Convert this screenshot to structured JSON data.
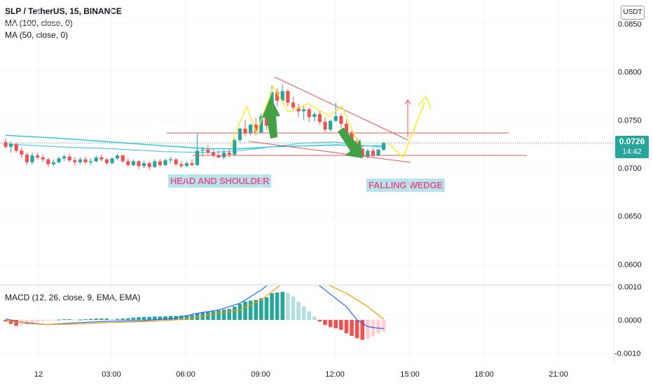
{
  "header": {
    "symbol_line": "SLP / TetherUS, 15, BINANCE",
    "ma100": "MA (100, close, 0)",
    "ma50": "MA (50, close, 0)",
    "currency": "USDT"
  },
  "macd": {
    "label": "MACD (12, 26, close, 9, EMA, EMA)"
  },
  "last_price": {
    "value": "0.0726",
    "countdown": "14:42"
  },
  "annotations": {
    "head_shoulder": "HEAD AND SHOULDER",
    "falling_wedge": "FALLING WEDGE"
  },
  "colors": {
    "up": "#26a69a",
    "down": "#ef5350",
    "ma100": "#26c6da",
    "ma50": "#4fc3f7",
    "macd": "#2962ff",
    "signal": "#ff9800",
    "pattern": "#ffeb3b",
    "wedge": "#ef5350"
  },
  "chart_data": {
    "type": "candlestick",
    "price_axis": {
      "ticks": [
        "0.0850",
        "0.0800",
        "0.0750",
        "0.0700",
        "0.0650",
        "0.0600"
      ],
      "range": [
        0.0585,
        0.0855
      ]
    },
    "macd_axis": {
      "ticks": [
        "0.0010",
        "0.0000",
        "-0.0010"
      ],
      "range": [
        -0.0012,
        0.0011
      ]
    },
    "time_axis": {
      "ticks": [
        "12",
        "03:00",
        "06:00",
        "09:00",
        "12:00",
        "15:00",
        "18:00",
        "21:00"
      ]
    },
    "candles": [
      [
        0.0727,
        0.0731,
        0.072,
        0.0722
      ],
      [
        0.0722,
        0.0728,
        0.0716,
        0.0725
      ],
      [
        0.0725,
        0.0726,
        0.0716,
        0.0718
      ],
      [
        0.0718,
        0.0721,
        0.071,
        0.0714
      ],
      [
        0.0714,
        0.0716,
        0.0703,
        0.0706
      ],
      [
        0.0706,
        0.0716,
        0.0704,
        0.0713
      ],
      [
        0.0713,
        0.0716,
        0.0709,
        0.0711
      ],
      [
        0.0711,
        0.0714,
        0.0706,
        0.0709
      ],
      [
        0.0709,
        0.0711,
        0.0701,
        0.0704
      ],
      [
        0.0704,
        0.0709,
        0.0702,
        0.0706
      ],
      [
        0.0706,
        0.0712,
        0.0705,
        0.071
      ],
      [
        0.071,
        0.0714,
        0.0707,
        0.0712
      ],
      [
        0.0712,
        0.0715,
        0.0706,
        0.0708
      ],
      [
        0.0708,
        0.0711,
        0.0702,
        0.0706
      ],
      [
        0.0706,
        0.0711,
        0.0704,
        0.0709
      ],
      [
        0.0709,
        0.0712,
        0.0704,
        0.0706
      ],
      [
        0.0706,
        0.071,
        0.0703,
        0.0707
      ],
      [
        0.0707,
        0.0713,
        0.0706,
        0.0711
      ],
      [
        0.0711,
        0.0714,
        0.0707,
        0.0709
      ],
      [
        0.0709,
        0.071,
        0.0703,
        0.0705
      ],
      [
        0.0705,
        0.0711,
        0.0704,
        0.071
      ],
      [
        0.071,
        0.0715,
        0.0708,
        0.0713
      ],
      [
        0.0713,
        0.0714,
        0.0705,
        0.0707
      ],
      [
        0.0707,
        0.071,
        0.0701,
        0.0703
      ],
      [
        0.0703,
        0.0709,
        0.0702,
        0.0707
      ],
      [
        0.0707,
        0.0708,
        0.0699,
        0.0702
      ],
      [
        0.0702,
        0.0708,
        0.07,
        0.0705
      ],
      [
        0.0705,
        0.0707,
        0.0698,
        0.0701
      ],
      [
        0.0701,
        0.0709,
        0.07,
        0.0707
      ],
      [
        0.0707,
        0.0709,
        0.0701,
        0.0703
      ],
      [
        0.0703,
        0.071,
        0.0702,
        0.0708
      ],
      [
        0.0708,
        0.0712,
        0.0705,
        0.0709
      ],
      [
        0.0709,
        0.071,
        0.0702,
        0.0704
      ],
      [
        0.0704,
        0.0707,
        0.07,
        0.0702
      ],
      [
        0.0702,
        0.0707,
        0.0701,
        0.0705
      ],
      [
        0.0705,
        0.0709,
        0.0702,
        0.0703
      ],
      [
        0.0703,
        0.0736,
        0.0702,
        0.0718
      ],
      [
        0.0718,
        0.0722,
        0.0712,
        0.0719
      ],
      [
        0.0719,
        0.0724,
        0.0714,
        0.0716
      ],
      [
        0.0716,
        0.072,
        0.0711,
        0.0713
      ],
      [
        0.0713,
        0.0718,
        0.071,
        0.0711
      ],
      [
        0.0711,
        0.0719,
        0.0709,
        0.0716
      ],
      [
        0.0716,
        0.072,
        0.0711,
        0.0714
      ],
      [
        0.0714,
        0.0731,
        0.0712,
        0.0729
      ],
      [
        0.0729,
        0.0742,
        0.0727,
        0.0741
      ],
      [
        0.0741,
        0.075,
        0.0733,
        0.0736
      ],
      [
        0.0736,
        0.0746,
        0.0734,
        0.0745
      ],
      [
        0.0745,
        0.0752,
        0.0734,
        0.0737
      ],
      [
        0.0737,
        0.0757,
        0.0736,
        0.0754
      ],
      [
        0.0754,
        0.0758,
        0.074,
        0.0744
      ],
      [
        0.0744,
        0.0786,
        0.0743,
        0.0779
      ],
      [
        0.0779,
        0.0783,
        0.0764,
        0.077
      ],
      [
        0.077,
        0.0787,
        0.0767,
        0.078
      ],
      [
        0.078,
        0.0782,
        0.0764,
        0.0768
      ],
      [
        0.0768,
        0.0774,
        0.076,
        0.0763
      ],
      [
        0.0763,
        0.0767,
        0.0753,
        0.0759
      ],
      [
        0.0759,
        0.0765,
        0.075,
        0.0761
      ],
      [
        0.0761,
        0.0763,
        0.0748,
        0.0753
      ],
      [
        0.0753,
        0.0758,
        0.0748,
        0.0756
      ],
      [
        0.0756,
        0.076,
        0.0745,
        0.0748
      ],
      [
        0.0748,
        0.0753,
        0.0737,
        0.074
      ],
      [
        0.074,
        0.075,
        0.0738,
        0.0749
      ],
      [
        0.0749,
        0.0768,
        0.0748,
        0.0754
      ],
      [
        0.0754,
        0.0757,
        0.0742,
        0.0746
      ],
      [
        0.0746,
        0.075,
        0.0735,
        0.0737
      ],
      [
        0.0737,
        0.0741,
        0.0725,
        0.0728
      ],
      [
        0.0728,
        0.0731,
        0.0717,
        0.072
      ],
      [
        0.072,
        0.0723,
        0.071,
        0.0712
      ],
      [
        0.0712,
        0.072,
        0.071,
        0.0718
      ],
      [
        0.0718,
        0.0721,
        0.0711,
        0.0713
      ],
      [
        0.0713,
        0.072,
        0.0712,
        0.0719
      ],
      [
        0.0719,
        0.0727,
        0.0718,
        0.0726
      ]
    ],
    "ma100": [
      [
        0,
        0.0734
      ],
      [
        10,
        0.0731
      ],
      [
        20,
        0.0727
      ],
      [
        30,
        0.0723
      ],
      [
        38,
        0.072
      ],
      [
        44,
        0.072
      ],
      [
        50,
        0.0722
      ],
      [
        56,
        0.0723
      ],
      [
        62,
        0.0724
      ],
      [
        66,
        0.0723
      ],
      [
        70,
        0.0723
      ],
      [
        71,
        0.0723
      ]
    ],
    "ma50": [
      [
        0,
        0.0725
      ],
      [
        10,
        0.0722
      ],
      [
        20,
        0.072
      ],
      [
        30,
        0.0717
      ],
      [
        38,
        0.0716
      ],
      [
        44,
        0.0718
      ],
      [
        50,
        0.0722
      ],
      [
        56,
        0.0726
      ],
      [
        62,
        0.0727
      ],
      [
        66,
        0.0724
      ],
      [
        70,
        0.0722
      ],
      [
        71,
        0.0722
      ]
    ],
    "macd_hist": [
      -5e-05,
      -0.00012,
      -0.00018,
      -0.00016,
      -0.00014,
      -0.0001,
      -6e-05,
      -4e-05,
      -3e-05,
      -2e-05,
      1e-05,
      2e-05,
      2e-05,
      1e-05,
      1e-05,
      2e-05,
      3e-05,
      4e-05,
      4e-05,
      4e-05,
      3e-05,
      3e-05,
      4e-05,
      5e-05,
      7e-05,
      8e-05,
      9e-05,
      9e-05,
      0.0001,
      0.0001,
      0.00011,
      0.00012,
      0.00012,
      0.00013,
      0.00014,
      0.00015,
      0.0002,
      0.00022,
      0.00024,
      0.00026,
      0.00029,
      0.00031,
      0.00033,
      0.0004,
      0.00048,
      0.00055,
      0.00058,
      0.0006,
      0.00065,
      0.00068,
      0.0008,
      0.00082,
      0.00084,
      0.00081,
      0.0007,
      0.00055,
      0.0004,
      0.00025,
      0.0001,
      -5e-05,
      -0.00015,
      -0.00022,
      -0.00025,
      -0.0003,
      -0.0004,
      -0.00048,
      -0.00055,
      -0.0006,
      -0.00057,
      -0.0005,
      -0.0004,
      -0.00035
    ],
    "macd_line": [
      [
        0,
        3e-05
      ],
      [
        4,
        -0.0001
      ],
      [
        8,
        -0.00014
      ],
      [
        14,
        -8e-05
      ],
      [
        20,
        -4e-05
      ],
      [
        26,
        -2e-05
      ],
      [
        32,
        5e-05
      ],
      [
        36,
        0.0002
      ],
      [
        40,
        0.0003
      ],
      [
        44,
        0.0005
      ],
      [
        48,
        0.0009
      ],
      [
        52,
        0.0014
      ],
      [
        56,
        0.0014
      ],
      [
        60,
        0.0009
      ],
      [
        64,
        0.0004
      ],
      [
        66,
        0.0
      ],
      [
        68,
        -0.0002
      ],
      [
        70,
        -0.00025
      ],
      [
        71,
        -0.00026
      ]
    ],
    "signal_line": [
      [
        0,
        -3e-05
      ],
      [
        4,
        -8e-05
      ],
      [
        8,
        -0.00014
      ],
      [
        14,
        -0.00012
      ],
      [
        20,
        -8e-05
      ],
      [
        26,
        -5e-05
      ],
      [
        32,
        0.0
      ],
      [
        36,
        8e-05
      ],
      [
        40,
        0.0002
      ],
      [
        44,
        0.0003
      ],
      [
        48,
        0.0006
      ],
      [
        52,
        0.0011
      ],
      [
        56,
        0.0012
      ],
      [
        60,
        0.0011
      ],
      [
        64,
        0.0008
      ],
      [
        68,
        0.0004
      ],
      [
        71,
        2e-05
      ]
    ]
  }
}
